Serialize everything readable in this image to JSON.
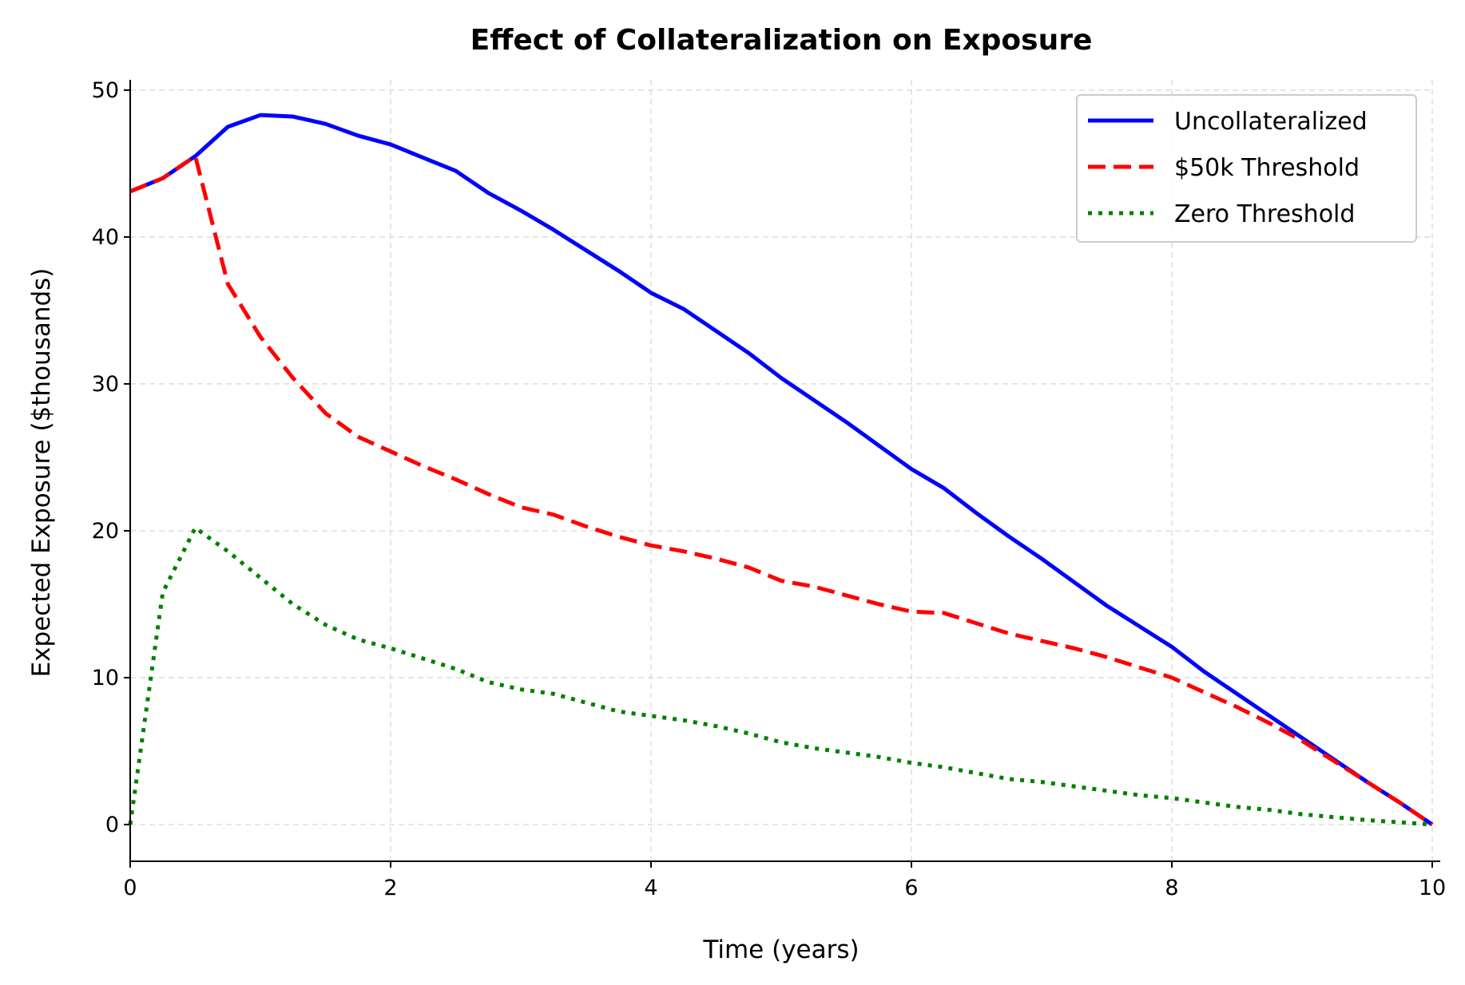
{
  "chart_data": {
    "type": "line",
    "title": "Effect of Collateralization on Exposure",
    "xlabel": "Time (years)",
    "ylabel": "Expected Exposure ($thousands)",
    "xlim": [
      0,
      10
    ],
    "ylim": [
      -2.5,
      50.7
    ],
    "xticks": [
      0,
      2,
      4,
      6,
      8,
      10
    ],
    "yticks": [
      0,
      10,
      20,
      30,
      40,
      50
    ],
    "grid": true,
    "legend_position": "top-right",
    "x": [
      0,
      0.25,
      0.5,
      0.75,
      1,
      1.25,
      1.5,
      1.75,
      2,
      2.25,
      2.5,
      2.75,
      3,
      3.25,
      3.5,
      3.75,
      4,
      4.25,
      4.5,
      4.75,
      5,
      5.25,
      5.5,
      5.75,
      6,
      6.25,
      6.5,
      6.75,
      7,
      7.25,
      7.5,
      7.75,
      8,
      8.25,
      8.5,
      8.75,
      9,
      9.25,
      9.5,
      9.75,
      10
    ],
    "series": [
      {
        "name": "Uncollateralized",
        "color": "#0000ff",
        "style": "solid",
        "values": [
          43.1,
          44.0,
          45.5,
          47.5,
          48.3,
          48.2,
          47.7,
          46.9,
          46.3,
          45.4,
          44.5,
          43.0,
          41.8,
          40.5,
          39.1,
          37.7,
          36.2,
          35.1,
          33.6,
          32.1,
          30.4,
          28.9,
          27.4,
          25.8,
          24.2,
          22.9,
          21.2,
          19.6,
          18.1,
          16.5,
          14.9,
          13.5,
          12.1,
          10.4,
          8.9,
          7.4,
          5.9,
          4.4,
          2.9,
          1.5,
          0
        ]
      },
      {
        "name": "$50k Threshold",
        "color": "#ff0000",
        "style": "dashed",
        "values": [
          43.1,
          44.0,
          45.5,
          36.8,
          33.2,
          30.4,
          28.0,
          26.4,
          25.4,
          24.4,
          23.5,
          22.5,
          21.6,
          21.1,
          20.3,
          19.6,
          19.0,
          18.6,
          18.1,
          17.5,
          16.6,
          16.2,
          15.6,
          15.0,
          14.5,
          14.4,
          13.7,
          13.0,
          12.5,
          12.0,
          11.4,
          10.7,
          10.0,
          9.0,
          8.0,
          6.9,
          5.7,
          4.3,
          2.9,
          1.5,
          0
        ]
      },
      {
        "name": "Zero Threshold",
        "color": "#008000",
        "style": "dotted",
        "values": [
          0,
          15.8,
          20.2,
          18.6,
          16.8,
          15.0,
          13.6,
          12.6,
          12.0,
          11.3,
          10.6,
          9.7,
          9.2,
          8.9,
          8.3,
          7.7,
          7.4,
          7.1,
          6.7,
          6.2,
          5.6,
          5.2,
          4.9,
          4.6,
          4.2,
          3.9,
          3.5,
          3.1,
          2.9,
          2.6,
          2.3,
          2.0,
          1.8,
          1.5,
          1.2,
          1.0,
          0.7,
          0.5,
          0.3,
          0.15,
          0
        ]
      }
    ]
  }
}
